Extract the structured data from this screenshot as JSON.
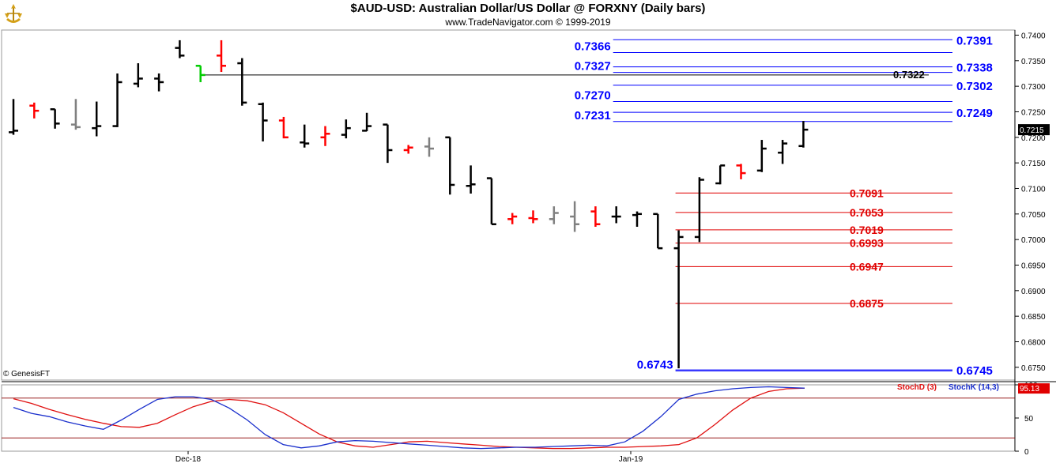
{
  "header": {
    "title": "$AUD-USD:  Australian Dollar/US Dollar @ FORXNY  (Daily bars)",
    "subtitle": "www.TradeNavigator.com © 1999-2019",
    "logo_icon": "trade-navigator-logo-icon"
  },
  "copyright": "© GenesisFT",
  "colors": {
    "up_bar": "#000000",
    "down_bar": "#ff0000",
    "neutral_bar": "#808080",
    "highlight_bar": "#00cc00",
    "blue_level": "#0000ff",
    "red_level": "#e00000",
    "stoch_k": "#1a2fcc",
    "stoch_d": "#e01010"
  },
  "chart_data": [
    {
      "type": "ohlc",
      "title": "$AUD-USD:  Australian Dollar/US Dollar @ FORXNY  (Daily bars)",
      "ylim": [
        0.6725,
        0.741
      ],
      "y_ticks": [
        "0.7400",
        "0.7350",
        "0.7300",
        "0.7250",
        "0.7200",
        "0.7150",
        "0.7100",
        "0.7050",
        "0.7000",
        "0.6950",
        "0.6900",
        "0.6850",
        "0.6800",
        "0.6750"
      ],
      "x_labels": [
        "Dec-18",
        "Jan-19"
      ],
      "last_price": "0.7215",
      "bars": [
        {
          "o": 0.721,
          "h": 0.7275,
          "l": 0.7205,
          "c": 0.7213,
          "color": "black"
        },
        {
          "o": 0.7262,
          "h": 0.7268,
          "l": 0.7237,
          "c": 0.7252,
          "color": "red"
        },
        {
          "o": 0.7255,
          "h": 0.7255,
          "l": 0.7217,
          "c": 0.7227,
          "color": "black"
        },
        {
          "o": 0.7225,
          "h": 0.7275,
          "l": 0.7215,
          "c": 0.722,
          "color": "gray"
        },
        {
          "o": 0.7218,
          "h": 0.727,
          "l": 0.7202,
          "c": 0.7222,
          "color": "black"
        },
        {
          "o": 0.7222,
          "h": 0.7325,
          "l": 0.722,
          "c": 0.7308,
          "color": "black"
        },
        {
          "o": 0.7305,
          "h": 0.7345,
          "l": 0.7298,
          "c": 0.7315,
          "color": "black"
        },
        {
          "o": 0.7315,
          "h": 0.7325,
          "l": 0.729,
          "c": 0.7308,
          "color": "black"
        },
        {
          "o": 0.7375,
          "h": 0.739,
          "l": 0.7355,
          "c": 0.736,
          "color": "black"
        },
        {
          "o": 0.734,
          "h": 0.734,
          "l": 0.7308,
          "c": 0.7322,
          "color": "green"
        },
        {
          "o": 0.736,
          "h": 0.739,
          "l": 0.7328,
          "c": 0.734,
          "color": "red"
        },
        {
          "o": 0.7345,
          "h": 0.7355,
          "l": 0.7262,
          "c": 0.7268,
          "color": "black"
        },
        {
          "o": 0.7265,
          "h": 0.7268,
          "l": 0.7192,
          "c": 0.7233,
          "color": "black"
        },
        {
          "o": 0.7233,
          "h": 0.724,
          "l": 0.7198,
          "c": 0.72,
          "color": "red"
        },
        {
          "o": 0.719,
          "h": 0.7225,
          "l": 0.718,
          "c": 0.7188,
          "color": "black"
        },
        {
          "o": 0.72,
          "h": 0.7222,
          "l": 0.7183,
          "c": 0.7207,
          "color": "red"
        },
        {
          "o": 0.7205,
          "h": 0.7235,
          "l": 0.7198,
          "c": 0.7218,
          "color": "black"
        },
        {
          "o": 0.7213,
          "h": 0.7248,
          "l": 0.7212,
          "c": 0.7222,
          "color": "black"
        },
        {
          "o": 0.7225,
          "h": 0.7225,
          "l": 0.715,
          "c": 0.7175,
          "color": "black"
        },
        {
          "o": 0.7175,
          "h": 0.7185,
          "l": 0.7168,
          "c": 0.718,
          "color": "red"
        },
        {
          "o": 0.7182,
          "h": 0.72,
          "l": 0.7162,
          "c": 0.7178,
          "color": "gray"
        },
        {
          "o": 0.72,
          "h": 0.72,
          "l": 0.7088,
          "c": 0.7107,
          "color": "black"
        },
        {
          "o": 0.7105,
          "h": 0.7145,
          "l": 0.709,
          "c": 0.7108,
          "color": "black"
        },
        {
          "o": 0.712,
          "h": 0.712,
          "l": 0.703,
          "c": 0.703,
          "color": "black"
        },
        {
          "o": 0.704,
          "h": 0.7052,
          "l": 0.703,
          "c": 0.7045,
          "color": "red"
        },
        {
          "o": 0.7042,
          "h": 0.7057,
          "l": 0.7032,
          "c": 0.704,
          "color": "red"
        },
        {
          "o": 0.704,
          "h": 0.7065,
          "l": 0.703,
          "c": 0.7052,
          "color": "gray"
        },
        {
          "o": 0.7045,
          "h": 0.7075,
          "l": 0.7015,
          "c": 0.703,
          "color": "gray"
        },
        {
          "o": 0.7055,
          "h": 0.7065,
          "l": 0.7025,
          "c": 0.703,
          "color": "red"
        },
        {
          "o": 0.7045,
          "h": 0.7065,
          "l": 0.7032,
          "c": 0.7045,
          "color": "black"
        },
        {
          "o": 0.7048,
          "h": 0.7055,
          "l": 0.7025,
          "c": 0.705,
          "color": "black"
        },
        {
          "o": 0.705,
          "h": 0.705,
          "l": 0.6983,
          "c": 0.6983,
          "color": "black"
        },
        {
          "o": 0.6983,
          "h": 0.7018,
          "l": 0.6748,
          "c": 0.7005,
          "color": "black"
        },
        {
          "o": 0.7005,
          "h": 0.7122,
          "l": 0.6995,
          "c": 0.7117,
          "color": "black"
        },
        {
          "o": 0.711,
          "h": 0.7145,
          "l": 0.7108,
          "c": 0.7145,
          "color": "black"
        },
        {
          "o": 0.7145,
          "h": 0.7148,
          "l": 0.7118,
          "c": 0.713,
          "color": "red"
        },
        {
          "o": 0.7135,
          "h": 0.7195,
          "l": 0.7132,
          "c": 0.7178,
          "color": "black"
        },
        {
          "o": 0.717,
          "h": 0.7195,
          "l": 0.7148,
          "c": 0.7188,
          "color": "black"
        },
        {
          "o": 0.7183,
          "h": 0.7232,
          "l": 0.718,
          "c": 0.7215,
          "color": "black"
        }
      ],
      "levels": [
        {
          "value": 0.7391,
          "label": "0.7391",
          "color": "blue",
          "side": "right",
          "start_bar": 29
        },
        {
          "value": 0.7366,
          "label": "0.7366",
          "color": "blue",
          "side": "left",
          "start_bar": 29
        },
        {
          "value": 0.7338,
          "label": "0.7338",
          "color": "blue",
          "side": "right",
          "start_bar": 29
        },
        {
          "value": 0.7327,
          "label": "0.7327",
          "color": "blue",
          "side": "left",
          "start_bar": 29
        },
        {
          "value": 0.7302,
          "label": "0.7302",
          "color": "blue",
          "side": "right",
          "start_bar": 29
        },
        {
          "value": 0.727,
          "label": "0.7270",
          "color": "blue",
          "side": "left",
          "start_bar": 29
        },
        {
          "value": 0.7249,
          "label": "0.7249",
          "color": "blue",
          "side": "right",
          "start_bar": 29
        },
        {
          "value": 0.7231,
          "label": "0.7231",
          "color": "blue",
          "side": "left",
          "start_bar": 29
        },
        {
          "value": 0.7091,
          "label": "0.7091",
          "color": "red",
          "side": "right",
          "start_bar": 32
        },
        {
          "value": 0.7053,
          "label": "0.7053",
          "color": "red",
          "side": "right",
          "start_bar": 32
        },
        {
          "value": 0.7019,
          "label": "0.7019",
          "color": "red",
          "side": "right",
          "start_bar": 32
        },
        {
          "value": 0.6993,
          "label": "0.6993",
          "color": "red",
          "side": "right",
          "start_bar": 32
        },
        {
          "value": 0.6947,
          "label": "0.6947",
          "color": "red",
          "side": "right",
          "start_bar": 32
        },
        {
          "value": 0.6875,
          "label": "0.6875",
          "color": "red",
          "side": "right",
          "start_bar": 32
        },
        {
          "value": 0.6745,
          "label": "0.6745",
          "color": "blue",
          "side": "right",
          "start_bar": 32
        },
        {
          "value": 0.6743,
          "label": "0.6743",
          "color": "blue",
          "side": "left",
          "start_bar": 32
        }
      ],
      "marker_line": {
        "value": 0.7322,
        "label": "0.7322",
        "start_bar": 9
      }
    },
    {
      "type": "line",
      "ylim": [
        0,
        100
      ],
      "y_ticks": [
        "100",
        "50",
        "0"
      ],
      "reference_lines": [
        80,
        20
      ],
      "last_value": "95.13",
      "series": [
        {
          "name": "StochD (3)",
          "color": "red",
          "values": [
            79,
            72,
            63,
            55,
            48,
            42,
            37,
            36,
            42,
            55,
            67,
            75,
            78,
            76,
            70,
            58,
            42,
            26,
            14,
            8,
            6,
            10,
            14,
            15,
            13,
            11,
            9,
            7,
            6,
            5,
            4,
            4,
            5,
            6,
            6,
            7,
            8,
            10,
            20,
            40,
            62,
            80,
            90,
            94,
            95
          ]
        },
        {
          "name": "StochK (14,3)",
          "color": "blue",
          "values": [
            66,
            57,
            52,
            44,
            38,
            33,
            47,
            63,
            78,
            82,
            82,
            78,
            65,
            47,
            25,
            10,
            5,
            8,
            14,
            16,
            15,
            13,
            11,
            9,
            7,
            5,
            4,
            5,
            6,
            6,
            7,
            8,
            9,
            8,
            14,
            30,
            52,
            78,
            86,
            91,
            94,
            96,
            97,
            96,
            95
          ]
        }
      ]
    }
  ]
}
